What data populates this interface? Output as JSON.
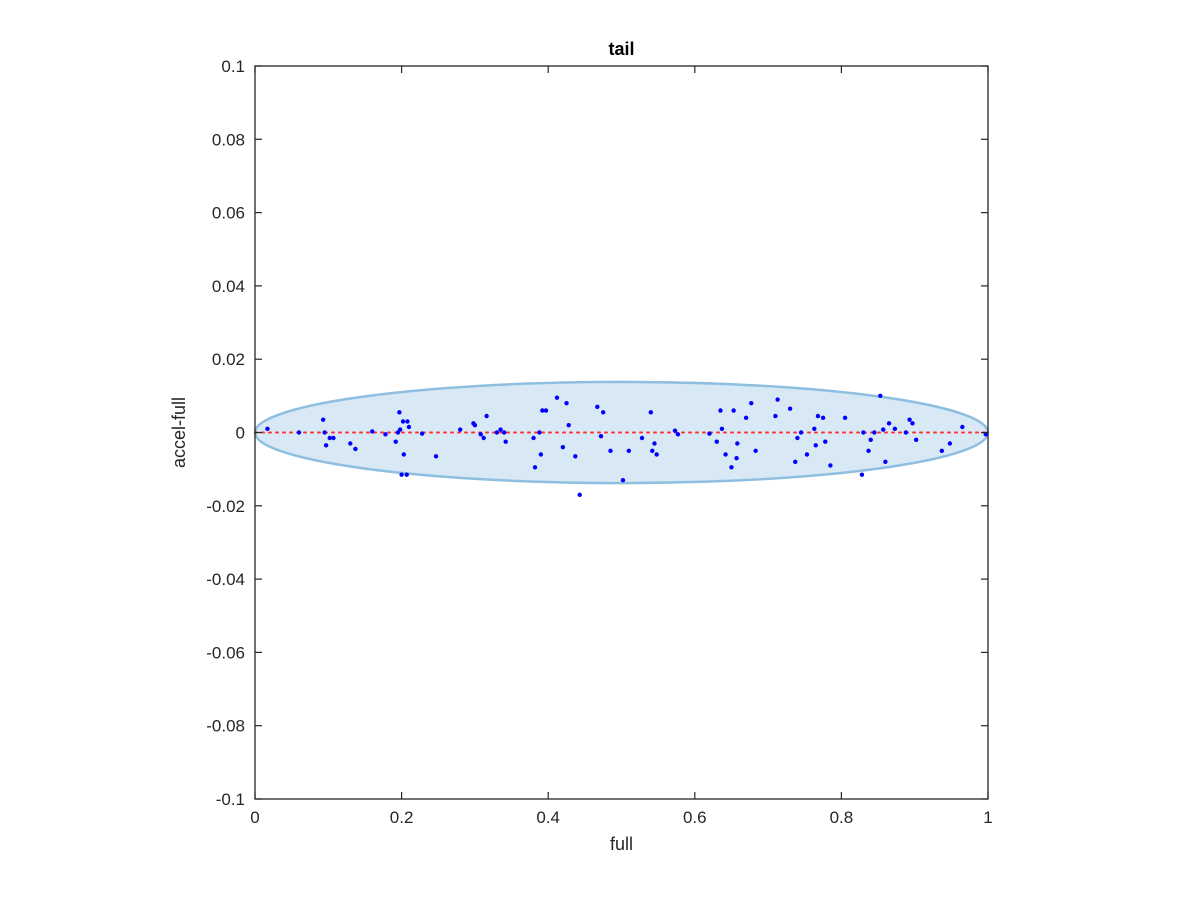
{
  "chart_data": {
    "type": "scatter",
    "title": "tail",
    "xlabel": "full",
    "ylabel": "accel-full",
    "xlim": [
      0,
      1
    ],
    "ylim": [
      -0.1,
      0.1
    ],
    "xticks": [
      0,
      0.2,
      0.4,
      0.6,
      0.8,
      1
    ],
    "xtick_labels": [
      "0",
      "0.2",
      "0.4",
      "0.6",
      "0.8",
      "1"
    ],
    "yticks": [
      -0.1,
      -0.08,
      -0.06,
      -0.04,
      -0.02,
      0,
      0.02,
      0.04,
      0.06,
      0.08,
      0.1
    ],
    "ytick_labels": [
      "-0.1",
      "-0.08",
      "-0.06",
      "-0.04",
      "-0.02",
      "0",
      "0.02",
      "0.04",
      "0.06",
      "0.08",
      "0.1"
    ],
    "grid": false,
    "colors": {
      "points": "#0000ff",
      "reference_line": "#ff3333",
      "ellipse_fill": "#d8e8f5",
      "ellipse_edge": "#8fbfe0",
      "axes": "#262626"
    },
    "reference_line": {
      "style": "dotted",
      "y": 0,
      "x": [
        0,
        1
      ]
    },
    "ellipse": {
      "cx": 0.5,
      "cy": 0,
      "rx": 0.5,
      "ry": 0.0138
    },
    "points": [
      [
        0.017,
        0.001
      ],
      [
        0.06,
        0.0
      ],
      [
        0.093,
        0.0035
      ],
      [
        0.095,
        0.0
      ],
      [
        0.097,
        -0.0035
      ],
      [
        0.102,
        -0.0015
      ],
      [
        0.107,
        -0.0015
      ],
      [
        0.13,
        -0.003
      ],
      [
        0.137,
        -0.0045
      ],
      [
        0.16,
        0.0003
      ],
      [
        0.178,
        -0.0005
      ],
      [
        0.192,
        -0.0025
      ],
      [
        0.195,
        0.0
      ],
      [
        0.197,
        0.0055
      ],
      [
        0.198,
        0.0008
      ],
      [
        0.2,
        -0.0115
      ],
      [
        0.202,
        0.003
      ],
      [
        0.203,
        -0.006
      ],
      [
        0.207,
        -0.0115
      ],
      [
        0.208,
        0.003
      ],
      [
        0.21,
        0.0015
      ],
      [
        0.228,
        -0.0003
      ],
      [
        0.247,
        -0.0065
      ],
      [
        0.28,
        0.0008
      ],
      [
        0.298,
        0.0025
      ],
      [
        0.3,
        0.002
      ],
      [
        0.308,
        -0.0005
      ],
      [
        0.312,
        -0.0015
      ],
      [
        0.316,
        0.0045
      ],
      [
        0.33,
        0.0
      ],
      [
        0.335,
        0.0008
      ],
      [
        0.34,
        0.0
      ],
      [
        0.342,
        -0.0025
      ],
      [
        0.38,
        -0.0015
      ],
      [
        0.382,
        -0.0095
      ],
      [
        0.388,
        0.0
      ],
      [
        0.39,
        -0.006
      ],
      [
        0.392,
        0.006
      ],
      [
        0.397,
        0.006
      ],
      [
        0.412,
        0.0095
      ],
      [
        0.42,
        -0.004
      ],
      [
        0.425,
        0.008
      ],
      [
        0.428,
        0.002
      ],
      [
        0.437,
        -0.0065
      ],
      [
        0.443,
        -0.017
      ],
      [
        0.467,
        0.007
      ],
      [
        0.472,
        -0.001
      ],
      [
        0.475,
        0.0055
      ],
      [
        0.485,
        -0.005
      ],
      [
        0.502,
        -0.013
      ],
      [
        0.51,
        -0.005
      ],
      [
        0.528,
        -0.0015
      ],
      [
        0.54,
        0.0055
      ],
      [
        0.542,
        -0.005
      ],
      [
        0.545,
        -0.003
      ],
      [
        0.548,
        -0.006
      ],
      [
        0.573,
        0.0005
      ],
      [
        0.577,
        -0.0005
      ],
      [
        0.62,
        -0.0003
      ],
      [
        0.63,
        -0.0025
      ],
      [
        0.635,
        0.006
      ],
      [
        0.637,
        0.001
      ],
      [
        0.642,
        -0.006
      ],
      [
        0.65,
        -0.0095
      ],
      [
        0.653,
        0.006
      ],
      [
        0.657,
        -0.007
      ],
      [
        0.658,
        -0.003
      ],
      [
        0.67,
        0.004
      ],
      [
        0.677,
        0.008
      ],
      [
        0.683,
        -0.005
      ],
      [
        0.71,
        0.0045
      ],
      [
        0.713,
        0.009
      ],
      [
        0.73,
        0.0065
      ],
      [
        0.737,
        -0.008
      ],
      [
        0.74,
        -0.0015
      ],
      [
        0.745,
        0.0
      ],
      [
        0.753,
        -0.006
      ],
      [
        0.763,
        0.001
      ],
      [
        0.765,
        -0.0035
      ],
      [
        0.768,
        0.0045
      ],
      [
        0.775,
        0.004
      ],
      [
        0.778,
        -0.0025
      ],
      [
        0.785,
        -0.009
      ],
      [
        0.805,
        0.004
      ],
      [
        0.828,
        -0.0115
      ],
      [
        0.83,
        0.0
      ],
      [
        0.837,
        -0.005
      ],
      [
        0.84,
        -0.002
      ],
      [
        0.845,
        0.0
      ],
      [
        0.853,
        0.01
      ],
      [
        0.857,
        0.0008
      ],
      [
        0.86,
        -0.008
      ],
      [
        0.865,
        0.0025
      ],
      [
        0.873,
        0.001
      ],
      [
        0.888,
        0.0
      ],
      [
        0.893,
        0.0035
      ],
      [
        0.897,
        0.0025
      ],
      [
        0.902,
        -0.002
      ],
      [
        0.937,
        -0.005
      ],
      [
        0.948,
        -0.003
      ],
      [
        0.965,
        0.0015
      ],
      [
        0.997,
        -0.0005
      ]
    ]
  }
}
